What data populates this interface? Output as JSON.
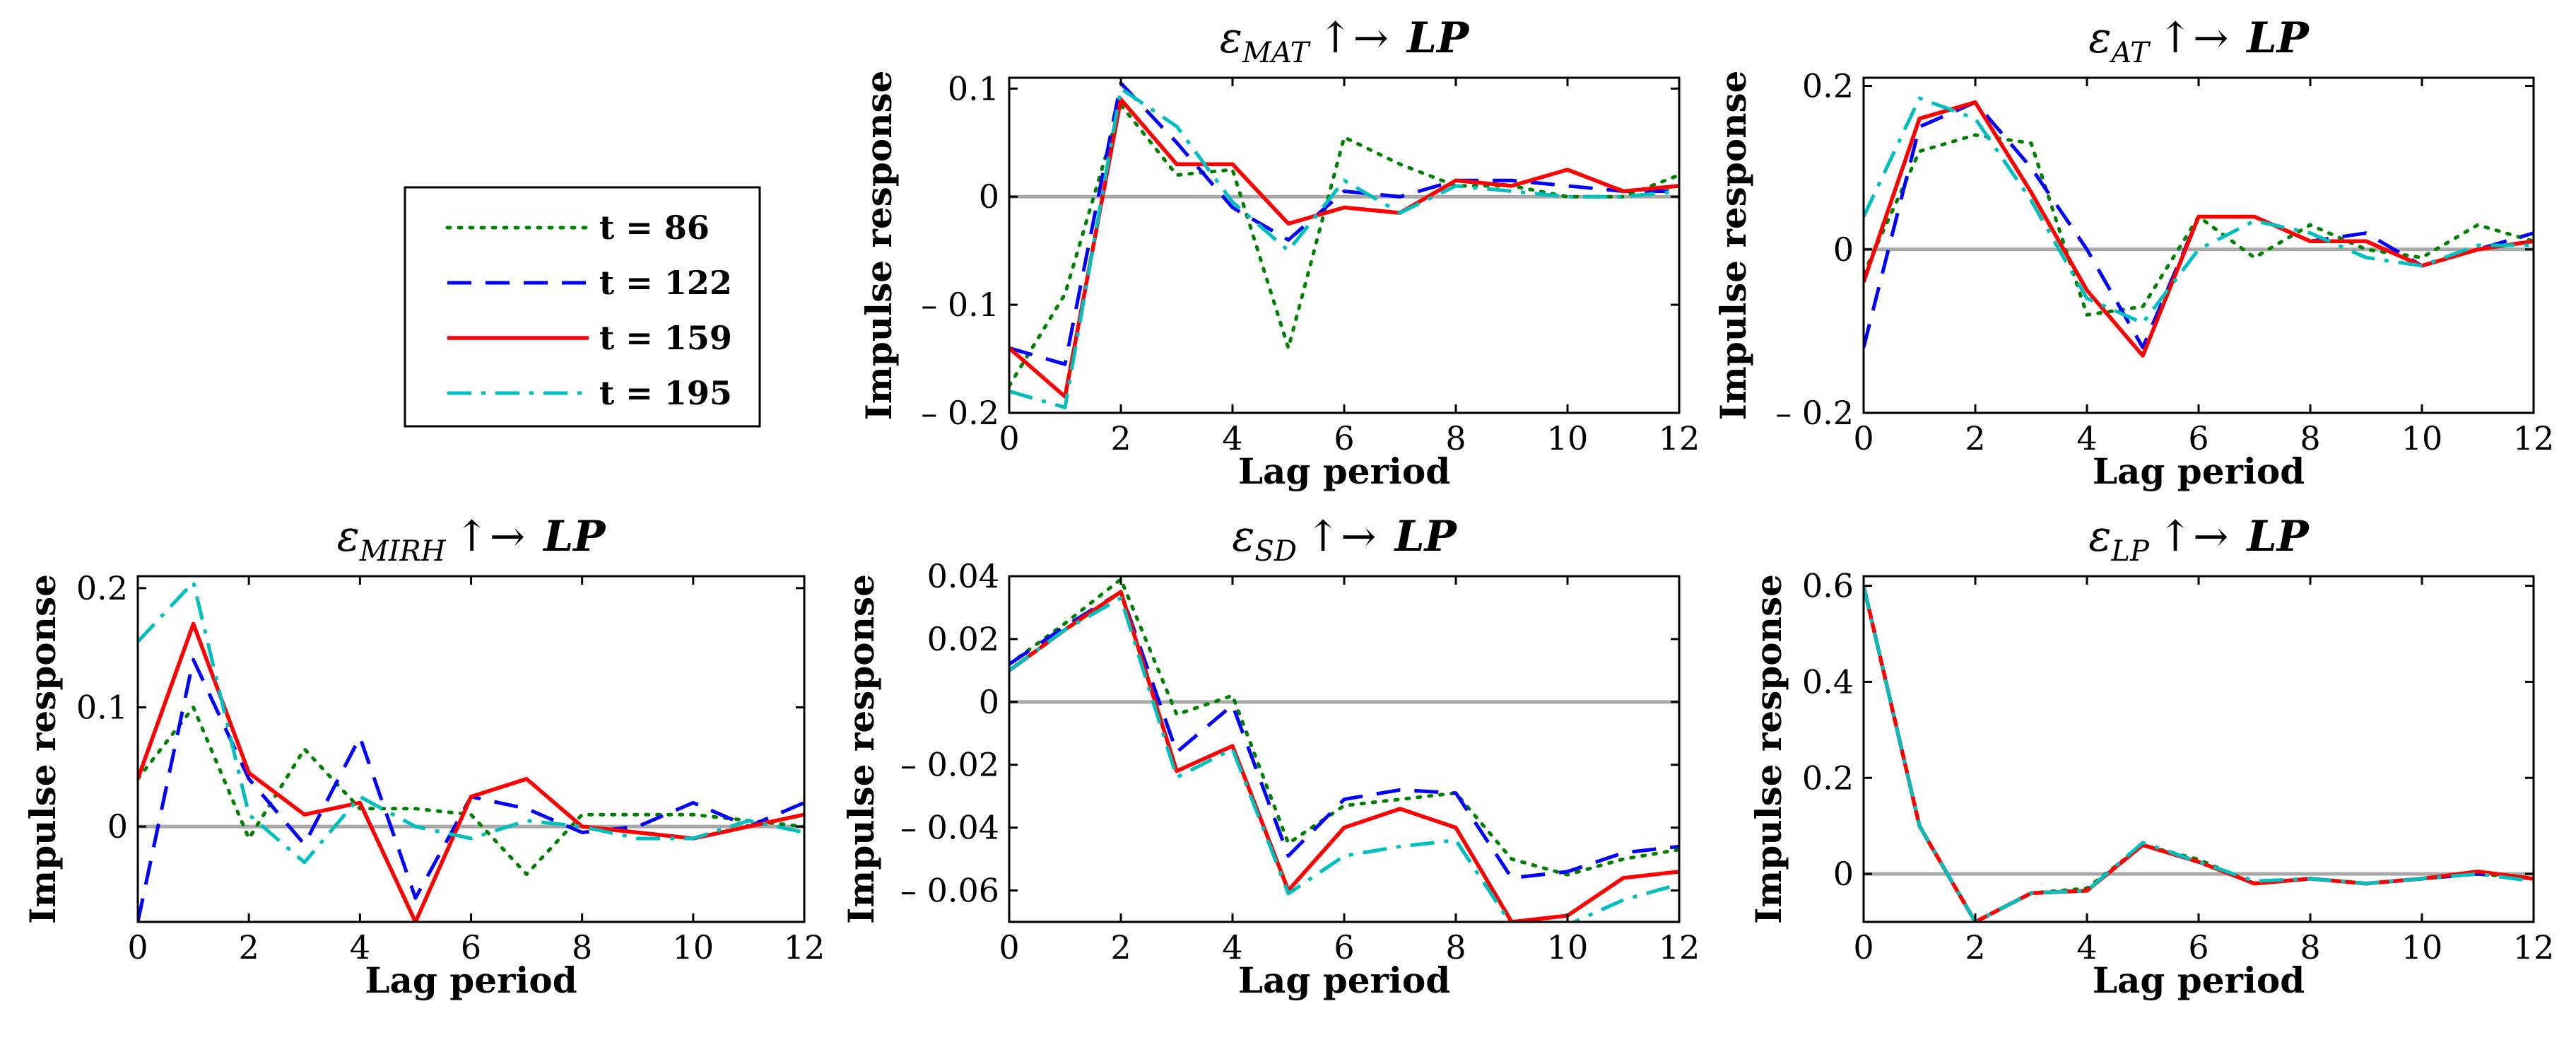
{
  "legend": {
    "entries": [
      {
        "label": "t = 86",
        "color": "#008000",
        "dash": "dotted"
      },
      {
        "label": "t = 122",
        "color": "#0000ff",
        "dash": "dashed"
      },
      {
        "label": "t = 159",
        "color": "#ff0000",
        "dash": "solid"
      },
      {
        "label": "t = 195",
        "color": "#00bfbf",
        "dash": "dashdot"
      }
    ]
  },
  "chart_data": [
    {
      "type": "line",
      "title_eps": "ε",
      "title_sub": "MAT",
      "title_tail": "↑→",
      "title_target": "LP",
      "xlabel": "Lag period",
      "ylabel": "Impulse response",
      "xlim": [
        0,
        12
      ],
      "ylim": [
        -0.2,
        0.11
      ],
      "xticks": [
        0,
        2,
        4,
        6,
        8,
        10,
        12
      ],
      "xtick_labels": [
        "0",
        "2",
        "4",
        "6",
        "8",
        "10",
        "12"
      ],
      "yticks": [
        -0.2,
        -0.1,
        0,
        0.1
      ],
      "ytick_labels": [
        "– 0.2",
        "– 0.1",
        "0",
        "0.1"
      ],
      "x": [
        0,
        1,
        2,
        3,
        4,
        5,
        6,
        7,
        8,
        9,
        10,
        11,
        12
      ],
      "series": [
        {
          "name": "t = 86",
          "values": [
            -0.175,
            -0.09,
            0.085,
            0.02,
            0.025,
            -0.14,
            0.055,
            0.03,
            0.01,
            0.01,
            0.0,
            0.0,
            0.02
          ]
        },
        {
          "name": "t = 122",
          "values": [
            -0.14,
            -0.155,
            0.105,
            0.05,
            -0.01,
            -0.04,
            0.005,
            0.0,
            0.015,
            0.015,
            0.01,
            0.005,
            0.005
          ]
        },
        {
          "name": "t = 159",
          "values": [
            -0.14,
            -0.185,
            0.09,
            0.03,
            0.03,
            -0.025,
            -0.01,
            -0.015,
            0.015,
            0.01,
            0.025,
            0.005,
            0.01
          ]
        },
        {
          "name": "t = 195",
          "values": [
            -0.18,
            -0.195,
            0.1,
            0.065,
            -0.005,
            -0.05,
            0.015,
            -0.015,
            0.01,
            0.005,
            0.0,
            0.0,
            0.005
          ]
        }
      ]
    },
    {
      "type": "line",
      "title_eps": "ε",
      "title_sub": "AT",
      "title_tail": "↑→",
      "title_target": "LP",
      "xlabel": "Lag period",
      "ylabel": "Impulse response",
      "xlim": [
        0,
        12
      ],
      "ylim": [
        -0.2,
        0.21
      ],
      "xticks": [
        0,
        2,
        4,
        6,
        8,
        10,
        12
      ],
      "xtick_labels": [
        "0",
        "2",
        "4",
        "6",
        "8",
        "10",
        "12"
      ],
      "yticks": [
        -0.2,
        0,
        0.2
      ],
      "ytick_labels": [
        "– 0.2",
        "0",
        "0.2"
      ],
      "x": [
        0,
        1,
        2,
        3,
        4,
        5,
        6,
        7,
        8,
        9,
        10,
        11,
        12
      ],
      "series": [
        {
          "name": "t = 86",
          "values": [
            -0.03,
            0.12,
            0.14,
            0.13,
            -0.08,
            -0.07,
            0.04,
            -0.01,
            0.03,
            0.0,
            -0.01,
            0.03,
            0.01
          ]
        },
        {
          "name": "t = 122",
          "values": [
            -0.12,
            0.15,
            0.18,
            0.1,
            0.0,
            -0.12,
            0.04,
            0.04,
            0.01,
            0.02,
            -0.02,
            0.0,
            0.02
          ]
        },
        {
          "name": "t = 159",
          "values": [
            -0.04,
            0.16,
            0.18,
            0.07,
            -0.05,
            -0.13,
            0.04,
            0.04,
            0.01,
            0.01,
            -0.02,
            0.0,
            0.01
          ]
        },
        {
          "name": "t = 195",
          "values": [
            0.04,
            0.185,
            0.16,
            0.06,
            -0.06,
            -0.09,
            0.0,
            0.035,
            0.02,
            -0.01,
            -0.02,
            0.005,
            0.005
          ]
        }
      ]
    },
    {
      "type": "line",
      "title_eps": "ε",
      "title_sub": "MIRH",
      "title_tail": "↑→",
      "title_target": "LP",
      "xlabel": "Lag period",
      "ylabel": "Impulse response",
      "xlim": [
        0,
        12
      ],
      "ylim": [
        -0.08,
        0.21
      ],
      "xticks": [
        0,
        2,
        4,
        6,
        8,
        10,
        12
      ],
      "xtick_labels": [
        "0",
        "2",
        "4",
        "6",
        "8",
        "10",
        "12"
      ],
      "yticks": [
        0,
        0.1,
        0.2
      ],
      "ytick_labels": [
        "0",
        "0.1",
        "0.2"
      ],
      "x": [
        0,
        1,
        2,
        3,
        4,
        5,
        6,
        7,
        8,
        9,
        10,
        11,
        12
      ],
      "series": [
        {
          "name": "t = 86",
          "values": [
            0.04,
            0.1,
            -0.01,
            0.065,
            0.015,
            0.015,
            0.01,
            -0.04,
            0.01,
            0.01,
            0.01,
            0.005,
            0.0
          ]
        },
        {
          "name": "t = 122",
          "values": [
            -0.08,
            0.14,
            0.04,
            -0.015,
            0.075,
            -0.06,
            0.025,
            0.015,
            -0.005,
            0.0,
            0.02,
            0.0,
            0.02
          ]
        },
        {
          "name": "t = 159",
          "values": [
            0.04,
            0.17,
            0.045,
            0.01,
            0.02,
            -0.08,
            0.025,
            0.04,
            0.0,
            -0.005,
            -0.01,
            0.0,
            0.01
          ]
        },
        {
          "name": "t = 195",
          "values": [
            0.155,
            0.205,
            0.01,
            -0.03,
            0.025,
            0.0,
            -0.01,
            0.005,
            0.0,
            -0.01,
            -0.01,
            0.005,
            -0.005
          ]
        }
      ]
    },
    {
      "type": "line",
      "title_eps": "ε",
      "title_sub": "SD",
      "title_tail": "↑→",
      "title_target": "LP",
      "xlabel": "Lag period",
      "ylabel": "Impulse response",
      "xlim": [
        0,
        12
      ],
      "ylim": [
        -0.07,
        0.04
      ],
      "xticks": [
        0,
        2,
        4,
        6,
        8,
        10,
        12
      ],
      "xtick_labels": [
        "0",
        "2",
        "4",
        "6",
        "8",
        "10",
        "12"
      ],
      "yticks": [
        -0.06,
        -0.04,
        -0.02,
        0,
        0.02,
        0.04
      ],
      "ytick_labels": [
        "– 0.06",
        "– 0.04",
        "– 0.02",
        "0",
        "0.02",
        "0.04"
      ],
      "x": [
        0,
        1,
        2,
        3,
        4,
        5,
        6,
        7,
        8,
        9,
        10,
        11,
        12
      ],
      "series": [
        {
          "name": "t = 86",
          "values": [
            0.012,
            0.025,
            0.039,
            -0.004,
            0.002,
            -0.045,
            -0.033,
            -0.031,
            -0.029,
            -0.05,
            -0.055,
            -0.05,
            -0.047
          ]
        },
        {
          "name": "t = 122",
          "values": [
            0.012,
            0.024,
            0.035,
            -0.016,
            -0.001,
            -0.049,
            -0.031,
            -0.028,
            -0.029,
            -0.056,
            -0.054,
            -0.048,
            -0.046
          ]
        },
        {
          "name": "t = 159",
          "values": [
            0.01,
            0.023,
            0.035,
            -0.022,
            -0.014,
            -0.06,
            -0.04,
            -0.034,
            -0.04,
            -0.07,
            -0.068,
            -0.056,
            -0.054
          ]
        },
        {
          "name": "t = 195",
          "values": [
            0.01,
            0.023,
            0.033,
            -0.024,
            -0.015,
            -0.061,
            -0.049,
            -0.046,
            -0.044,
            -0.071,
            -0.071,
            -0.063,
            -0.058
          ]
        }
      ]
    },
    {
      "type": "line",
      "title_eps": "ε",
      "title_sub": "LP",
      "title_tail": "↑→",
      "title_target": "LP",
      "xlabel": "Lag period",
      "ylabel": "Impulse response",
      "xlim": [
        0,
        12
      ],
      "ylim": [
        -0.1,
        0.62
      ],
      "xticks": [
        0,
        2,
        4,
        6,
        8,
        10,
        12
      ],
      "xtick_labels": [
        "0",
        "2",
        "4",
        "6",
        "8",
        "10",
        "12"
      ],
      "yticks": [
        0,
        0.2,
        0.4,
        0.6
      ],
      "ytick_labels": [
        "0",
        "0.2",
        "0.4",
        "0.6"
      ],
      "x": [
        0,
        1,
        2,
        3,
        4,
        5,
        6,
        7,
        8,
        9,
        10,
        11,
        12
      ],
      "series": [
        {
          "name": "t = 86",
          "values": [
            0.6,
            0.1,
            -0.1,
            -0.04,
            -0.03,
            0.06,
            0.03,
            -0.02,
            -0.01,
            -0.02,
            -0.01,
            0.0,
            -0.01
          ]
        },
        {
          "name": "t = 122",
          "values": [
            0.6,
            0.1,
            -0.1,
            -0.04,
            -0.035,
            0.06,
            0.025,
            -0.02,
            -0.01,
            -0.02,
            -0.01,
            0.0,
            -0.01
          ]
        },
        {
          "name": "t = 159",
          "values": [
            0.6,
            0.1,
            -0.1,
            -0.04,
            -0.035,
            0.06,
            0.025,
            -0.02,
            -0.01,
            -0.02,
            -0.01,
            0.005,
            -0.01
          ]
        },
        {
          "name": "t = 195",
          "values": [
            0.6,
            0.1,
            -0.1,
            -0.04,
            -0.035,
            0.065,
            0.025,
            -0.015,
            -0.01,
            -0.02,
            -0.01,
            0.0,
            -0.015
          ]
        }
      ]
    }
  ]
}
